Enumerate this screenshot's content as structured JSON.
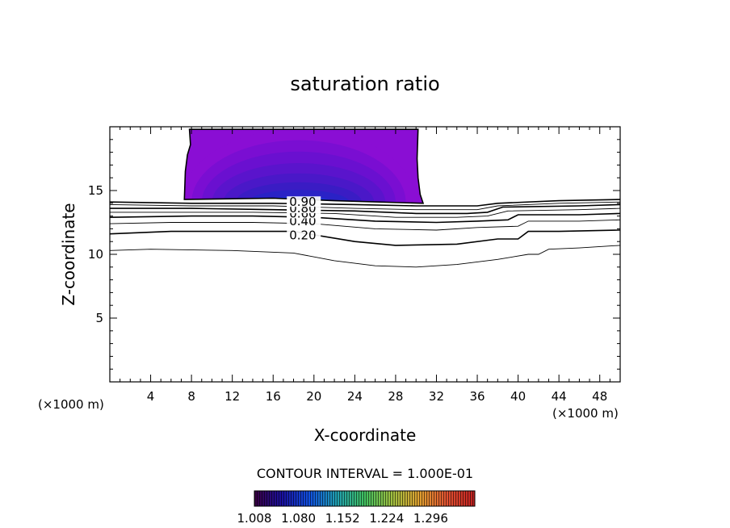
{
  "chart_data": {
    "type": "contour",
    "title": "saturation ratio",
    "xlabel": "X-coordinate",
    "ylabel": "Z-coordinate",
    "x_unit_left": "(×1000 m)",
    "x_unit_right": "(×1000 m)",
    "xlim": [
      0,
      50
    ],
    "ylim": [
      0,
      20
    ],
    "xticks": [
      4,
      8,
      12,
      16,
      20,
      24,
      28,
      32,
      36,
      40,
      44,
      48
    ],
    "yticks": [
      5,
      10,
      15
    ],
    "contour_interval_text": "CONTOUR INTERVAL = 1.000E-01",
    "contour_labels": [
      {
        "text": "0.20",
        "x": 17.5,
        "z": 11.5
      },
      {
        "text": "0.40",
        "x": 17.5,
        "z": 12.6
      },
      {
        "text": "0.60",
        "x": 17.5,
        "z": 13.2
      },
      {
        "text": "0.80",
        "x": 17.5,
        "z": 13.6
      },
      {
        "text": "0.90",
        "x": 17.5,
        "z": 14.1
      }
    ],
    "contour_lines": [
      {
        "level": 0.1,
        "points": [
          [
            0,
            10.3
          ],
          [
            4,
            10.4
          ],
          [
            12,
            10.3
          ],
          [
            18,
            10.1
          ],
          [
            22,
            9.5
          ],
          [
            26,
            9.1
          ],
          [
            30,
            9.0
          ],
          [
            34,
            9.2
          ],
          [
            38,
            9.6
          ],
          [
            41,
            10.0
          ],
          [
            42,
            10.0
          ],
          [
            43,
            10.4
          ],
          [
            46,
            10.5
          ],
          [
            50,
            10.7
          ]
        ]
      },
      {
        "level": 0.2,
        "points": [
          [
            0,
            11.6
          ],
          [
            6,
            11.8
          ],
          [
            12,
            11.8
          ],
          [
            18,
            11.8
          ],
          [
            24,
            11.0
          ],
          [
            28,
            10.7
          ],
          [
            34,
            10.8
          ],
          [
            38,
            11.2
          ],
          [
            40,
            11.2
          ],
          [
            41,
            11.8
          ],
          [
            44,
            11.8
          ],
          [
            50,
            11.9
          ]
        ]
      },
      {
        "level": 0.3,
        "points": [
          [
            0,
            12.4
          ],
          [
            6,
            12.5
          ],
          [
            14,
            12.5
          ],
          [
            20,
            12.4
          ],
          [
            26,
            12.0
          ],
          [
            32,
            11.9
          ],
          [
            36,
            12.1
          ],
          [
            40,
            12.2
          ],
          [
            41,
            12.6
          ],
          [
            46,
            12.6
          ],
          [
            50,
            12.7
          ]
        ]
      },
      {
        "level": 0.4,
        "points": [
          [
            0,
            12.9
          ],
          [
            8,
            13.0
          ],
          [
            14,
            13.0
          ],
          [
            20,
            12.9
          ],
          [
            26,
            12.6
          ],
          [
            32,
            12.5
          ],
          [
            36,
            12.6
          ],
          [
            39,
            12.7
          ],
          [
            40,
            13.1
          ],
          [
            46,
            13.1
          ],
          [
            50,
            13.2
          ]
        ]
      },
      {
        "level": 0.5,
        "points": [
          [
            0,
            13.3
          ],
          [
            8,
            13.3
          ],
          [
            14,
            13.3
          ],
          [
            22,
            13.2
          ],
          [
            28,
            12.9
          ],
          [
            34,
            12.9
          ],
          [
            37,
            13.0
          ],
          [
            39,
            13.4
          ],
          [
            46,
            13.5
          ],
          [
            50,
            13.6
          ]
        ]
      },
      {
        "level": 0.6,
        "points": [
          [
            0,
            13.6
          ],
          [
            8,
            13.6
          ],
          [
            16,
            13.5
          ],
          [
            24,
            13.4
          ],
          [
            30,
            13.2
          ],
          [
            35,
            13.2
          ],
          [
            37,
            13.3
          ],
          [
            38.5,
            13.7
          ],
          [
            46,
            13.8
          ],
          [
            50,
            13.9
          ]
        ]
      },
      {
        "level": 0.7,
        "points": [
          [
            0,
            13.9
          ],
          [
            8,
            13.8
          ],
          [
            16,
            13.8
          ],
          [
            24,
            13.6
          ],
          [
            30,
            13.5
          ],
          [
            36,
            13.5
          ],
          [
            38,
            13.8
          ],
          [
            44,
            14.0
          ],
          [
            50,
            14.1
          ]
        ]
      },
      {
        "level": 0.8,
        "points": [
          [
            0,
            14.1
          ],
          [
            8,
            14.0
          ],
          [
            16,
            14.0
          ],
          [
            24,
            13.9
          ],
          [
            30,
            13.8
          ],
          [
            36,
            13.8
          ],
          [
            38,
            14.0
          ],
          [
            44,
            14.2
          ],
          [
            50,
            14.3
          ]
        ]
      }
    ],
    "saturated_region_outline": [
      [
        7.3,
        14.3
      ],
      [
        7.4,
        16.5
      ],
      [
        7.6,
        17.8
      ],
      [
        7.9,
        18.6
      ],
      [
        7.8,
        19.8
      ],
      [
        30.2,
        19.8
      ],
      [
        30.1,
        17.5
      ],
      [
        30.2,
        16.0
      ],
      [
        30.4,
        14.7
      ],
      [
        30.7,
        14.0
      ],
      [
        22,
        14.2
      ],
      [
        16,
        14.4
      ],
      [
        7.3,
        14.3
      ]
    ],
    "saturated_region_fill_bands": [
      {
        "value": 1.008,
        "center_x": 18.5,
        "center_z": 14.05,
        "rx": 11.5,
        "rz": 5.8,
        "color": "#8a0ed4"
      },
      {
        "value": 1.02,
        "center_x": 18.5,
        "center_z": 14.05,
        "rx": 10.5,
        "rz": 4.9,
        "color": "#7a0ed2"
      },
      {
        "value": 1.03,
        "center_x": 18.5,
        "center_z": 14.05,
        "rx": 9.5,
        "rz": 4.0,
        "color": "#6a10d0"
      },
      {
        "value": 1.04,
        "center_x": 18.5,
        "center_z": 14.05,
        "rx": 8.5,
        "rz": 3.1,
        "color": "#5a14cc"
      },
      {
        "value": 1.05,
        "center_x": 18.5,
        "center_z": 14.05,
        "rx": 7.4,
        "rz": 2.3,
        "color": "#4a18c8"
      },
      {
        "value": 1.06,
        "center_x": 18.5,
        "center_z": 14.05,
        "rx": 6.2,
        "rz": 1.6,
        "color": "#3a1cc4"
      },
      {
        "value": 1.07,
        "center_x": 18.5,
        "center_z": 14.05,
        "rx": 5.0,
        "rz": 1.0,
        "color": "#2a22c6"
      },
      {
        "value": 1.08,
        "center_x": 18.5,
        "center_z": 14.05,
        "rx": 3.4,
        "rz": 0.5,
        "color": "#1e30d8"
      },
      {
        "value": 1.09,
        "center_x": 18.5,
        "center_z": 14.05,
        "rx": 1.6,
        "rz": 0.22,
        "color": "#1a50f0"
      }
    ],
    "colorbar": {
      "ticks": [
        "1.008",
        "1.080",
        "1.152",
        "1.224",
        "1.296"
      ],
      "min": 1.008,
      "max": 1.368,
      "stops": [
        "#3a0040",
        "#1a10a0",
        "#1050e0",
        "#20a0b0",
        "#40c060",
        "#a0c040",
        "#e0a030",
        "#e05030",
        "#c02020"
      ]
    },
    "grid": false
  }
}
